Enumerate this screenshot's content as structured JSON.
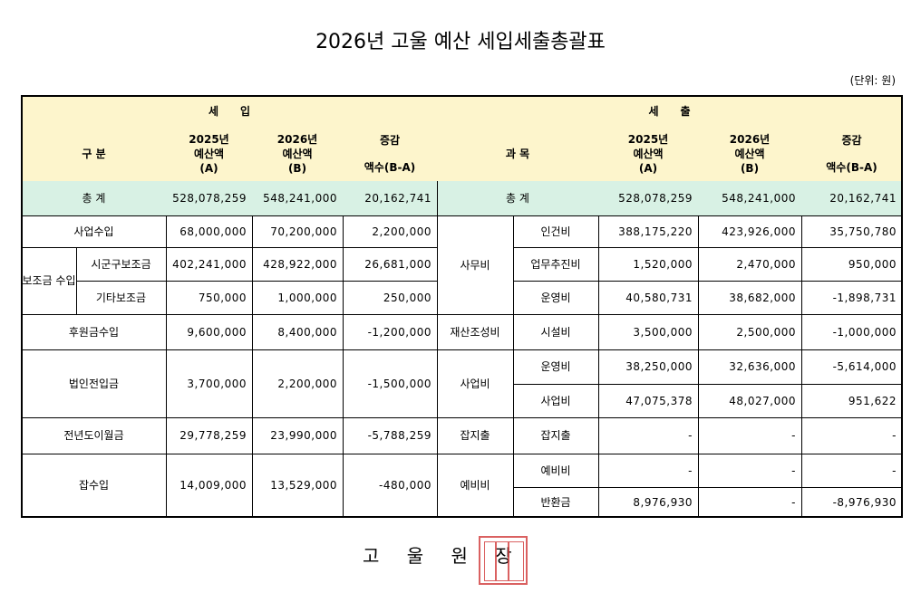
{
  "title": "2026년 고울 예산 세입세출총괄표",
  "unit": "(단위: 원)",
  "headers": {
    "income": "세　　입",
    "expense": "세　　출",
    "category": "구 분",
    "subject": "과 목",
    "prev": [
      "2025년",
      "예산액",
      "(A)"
    ],
    "curr": [
      "2026년",
      "예산액",
      "(B)"
    ],
    "diff": "증감",
    "diff_sub": "액수(B-A)"
  },
  "income": {
    "total": {
      "label": "총 계",
      "values": [
        "528,078,259",
        "548,241,000",
        "20,162,741"
      ]
    },
    "rows": [
      {
        "label": "사업수입",
        "values": [
          "68,000,000",
          "70,200,000",
          "2,200,000"
        ]
      },
      {
        "group": "보조금 수입",
        "items": [
          {
            "label": "시군구보조금",
            "values": [
              "402,241,000",
              "428,922,000",
              "26,681,000"
            ]
          },
          {
            "label": "기타보조금",
            "values": [
              "750,000",
              "1,000,000",
              "250,000"
            ]
          }
        ]
      },
      {
        "label": "후원금수입",
        "values": [
          "9,600,000",
          "8,400,000",
          "-1,200,000"
        ]
      },
      {
        "label": "법인전입금",
        "values": [
          "3,700,000",
          "2,200,000",
          "-1,500,000"
        ]
      },
      {
        "label": "전년도이월금",
        "values": [
          "29,778,259",
          "23,990,000",
          "-5,788,259"
        ]
      },
      {
        "label": "잡수입",
        "values": [
          "14,009,000",
          "13,529,000",
          "-480,000"
        ]
      }
    ]
  },
  "expense": {
    "total": {
      "label": "총 계",
      "values": [
        "528,078,259",
        "548,241,000",
        "20,162,741"
      ]
    },
    "groups": [
      {
        "label": "사무비",
        "items": [
          {
            "label": "인건비",
            "values": [
              "388,175,220",
              "423,926,000",
              "35,750,780"
            ]
          },
          {
            "label": "업무추진비",
            "values": [
              "1,520,000",
              "2,470,000",
              "950,000"
            ]
          },
          {
            "label": "운영비",
            "values": [
              "40,580,731",
              "38,682,000",
              "-1,898,731"
            ]
          }
        ]
      },
      {
        "label": "재산조성비",
        "items": [
          {
            "label": "시설비",
            "values": [
              "3,500,000",
              "2,500,000",
              "-1,000,000"
            ]
          }
        ]
      },
      {
        "label": "사업비",
        "items": [
          {
            "label": "운영비",
            "values": [
              "38,250,000",
              "32,636,000",
              "-5,614,000"
            ]
          },
          {
            "label": "사업비",
            "values": [
              "47,075,378",
              "48,027,000",
              "951,622"
            ]
          }
        ]
      },
      {
        "label": "잡지출",
        "items": [
          {
            "label": "잡지출",
            "values": [
              "-",
              "-",
              "-"
            ]
          }
        ]
      },
      {
        "label": "예비비",
        "items": [
          {
            "label": "예비비",
            "values": [
              "-",
              "-",
              "-"
            ]
          },
          {
            "label": "반환금",
            "values": [
              "8,976,930",
              "-",
              "-8,976,930"
            ]
          }
        ]
      }
    ]
  },
  "footer": "고 울 원 장"
}
